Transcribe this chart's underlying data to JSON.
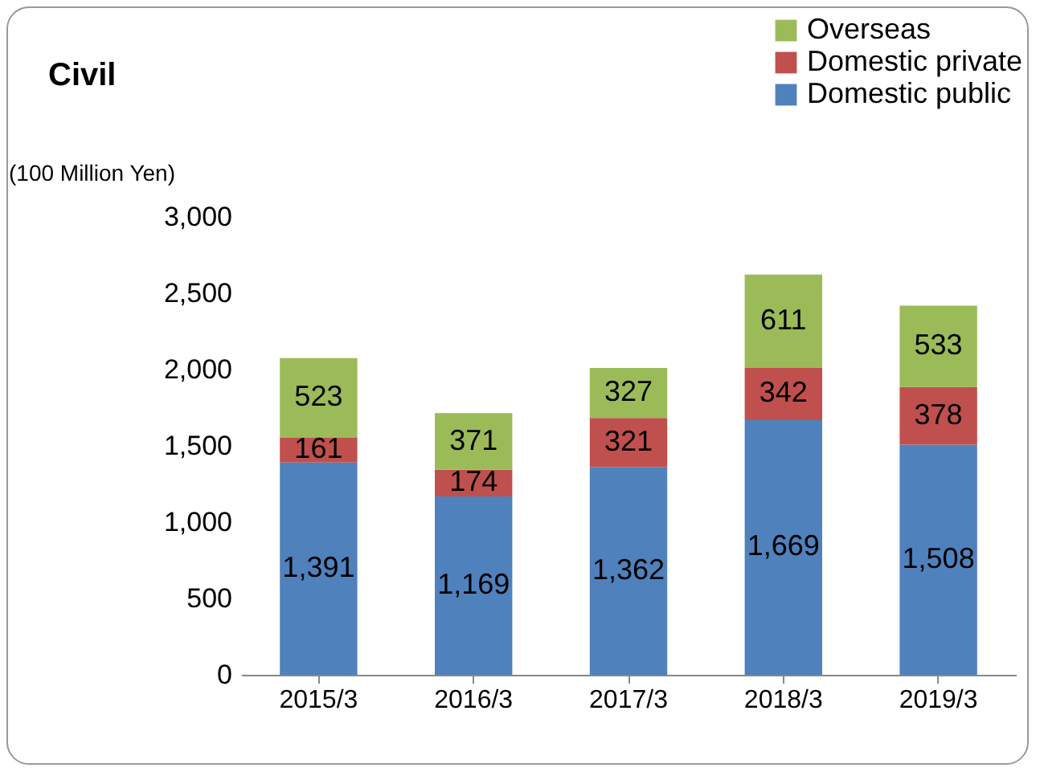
{
  "chart_data": {
    "type": "bar",
    "title": "Civil",
    "ylabel": "(100 Million Yen)",
    "categories": [
      "2015/3",
      "2016/3",
      "2017/3",
      "2018/3",
      "2019/3"
    ],
    "series": [
      {
        "name": "Domestic public",
        "color": "#4f81bd",
        "values": [
          1391,
          1169,
          1362,
          1669,
          1508
        ],
        "value_labels": [
          "1,391",
          "1,169",
          "1,362",
          "1,669",
          "1,508"
        ]
      },
      {
        "name": "Domestic private",
        "color": "#c0504d",
        "values": [
          161,
          174,
          321,
          342,
          378
        ],
        "value_labels": [
          "161",
          "174",
          "321",
          "342",
          "378"
        ]
      },
      {
        "name": "Overseas",
        "color": "#9bbb59",
        "values": [
          523,
          371,
          327,
          611,
          533
        ],
        "value_labels": [
          "523",
          "371",
          "327",
          "611",
          "533"
        ]
      }
    ],
    "stacked": true,
    "ylim": [
      0,
      3000
    ],
    "yticks": [
      0,
      500,
      {
        "value": 1000,
        "label": "1,000"
      },
      {
        "value": 1500,
        "label": "1,500"
      },
      {
        "value": 2000,
        "label": "2,000"
      },
      {
        "value": 2500,
        "label": "2,500"
      },
      {
        "value": 3000,
        "label": "3,000"
      }
    ],
    "grid": false,
    "legend": "top right"
  }
}
